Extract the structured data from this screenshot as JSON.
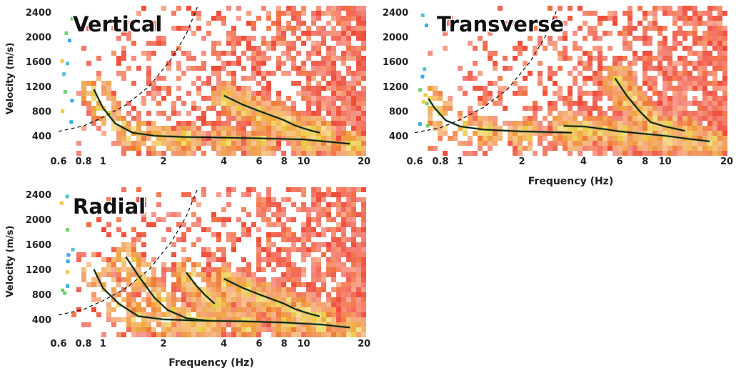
{
  "chart_data": [
    {
      "type": "heatmap",
      "title": "Vertical",
      "xlabel": "",
      "ylabel": "Velocity (m/s)",
      "x_scale": "log",
      "xlim": [
        0.6,
        20
      ],
      "ylim": [
        150,
        2500
      ],
      "x_ticks": [
        "0.6",
        "0.8",
        "1",
        "2",
        "4",
        "6",
        "8",
        "10",
        "20"
      ],
      "y_ticks": [
        "400",
        "800",
        "1200",
        "1600",
        "2000",
        "2400"
      ],
      "reference_curve": {
        "style": "dashed",
        "x": [
          0.6,
          0.8,
          1.0,
          1.3,
          1.7,
          2.2,
          2.6,
          2.95
        ],
        "y": [
          470,
          560,
          700,
          900,
          1200,
          1650,
          2050,
          2480
        ]
      },
      "dispersion_curves": [
        {
          "x": [
            0.9,
            1.0,
            1.15,
            1.4,
            1.8,
            2.5,
            4.0,
            6.0,
            10.0,
            17.0
          ],
          "y": [
            1150,
            850,
            600,
            450,
            400,
            380,
            370,
            360,
            340,
            270
          ]
        },
        {
          "x": [
            4.0,
            5.0,
            6.0,
            7.0,
            8.0,
            9.0,
            10.0,
            11.0,
            12.0
          ],
          "y": [
            1050,
            900,
            800,
            720,
            650,
            570,
            520,
            480,
            450
          ]
        }
      ]
    },
    {
      "type": "heatmap",
      "title": "Transverse",
      "xlabel": "Frequency (Hz)",
      "ylabel": "",
      "x_scale": "log",
      "xlim": [
        0.6,
        20
      ],
      "ylim": [
        150,
        2500
      ],
      "x_ticks": [
        "0.6",
        "0.8",
        "1",
        "2",
        "4",
        "6",
        "8",
        "10",
        "20"
      ],
      "y_ticks": [
        "400",
        "800",
        "1200",
        "1600",
        "2000",
        "2400"
      ],
      "reference_curve": {
        "style": "dashed",
        "x": [
          0.6,
          0.8,
          1.0,
          1.3,
          1.7,
          2.2,
          2.6,
          2.95
        ],
        "y": [
          450,
          530,
          660,
          860,
          1150,
          1600,
          2000,
          2420
        ]
      },
      "dispersion_curves": [
        {
          "x": [
            0.7,
            0.75,
            0.85,
            1.0,
            1.3,
            2.0,
            3.5
          ],
          "y": [
            1000,
            850,
            650,
            550,
            500,
            470,
            450
          ]
        },
        {
          "x": [
            3.2,
            4.0,
            5.0,
            6.0,
            8.0,
            10.0,
            13.0,
            16.5
          ],
          "y": [
            560,
            550,
            510,
            470,
            430,
            400,
            350,
            310
          ]
        },
        {
          "x": [
            5.7,
            6.5,
            7.5,
            8.5,
            10.0,
            12.5
          ],
          "y": [
            1330,
            1050,
            800,
            620,
            550,
            480
          ]
        }
      ]
    },
    {
      "type": "heatmap",
      "title": "Radial",
      "xlabel": "Frequency (Hz)",
      "ylabel": "Velocity (m/s)",
      "x_scale": "log",
      "xlim": [
        0.6,
        20
      ],
      "ylim": [
        150,
        2500
      ],
      "x_ticks": [
        "0.6",
        "0.8",
        "1",
        "2",
        "4",
        "6",
        "8",
        "10",
        "20"
      ],
      "y_ticks": [
        "400",
        "800",
        "1200",
        "1600",
        "2000",
        "2400"
      ],
      "reference_curve": {
        "style": "dashed",
        "x": [
          0.6,
          0.8,
          1.0,
          1.3,
          1.7,
          2.2,
          2.6,
          2.95
        ],
        "y": [
          470,
          560,
          700,
          900,
          1200,
          1650,
          2050,
          2480
        ]
      },
      "dispersion_curves": [
        {
          "x": [
            0.9,
            1.0,
            1.2,
            1.5,
            2.0,
            3.0,
            5.0,
            8.0,
            12.0,
            17.0
          ],
          "y": [
            1200,
            900,
            650,
            450,
            400,
            380,
            370,
            350,
            320,
            270
          ]
        },
        {
          "x": [
            1.3,
            1.5,
            1.8,
            2.1,
            2.6,
            3.3
          ],
          "y": [
            1400,
            1100,
            750,
            550,
            420,
            380
          ]
        },
        {
          "x": [
            2.6,
            2.9,
            3.2,
            3.6
          ],
          "y": [
            1150,
            950,
            800,
            650
          ]
        },
        {
          "x": [
            4.0,
            5.0,
            6.0,
            7.0,
            8.0,
            9.0,
            10.0,
            11.0,
            12.0
          ],
          "y": [
            1050,
            900,
            800,
            720,
            650,
            570,
            520,
            480,
            450
          ]
        }
      ]
    }
  ]
}
